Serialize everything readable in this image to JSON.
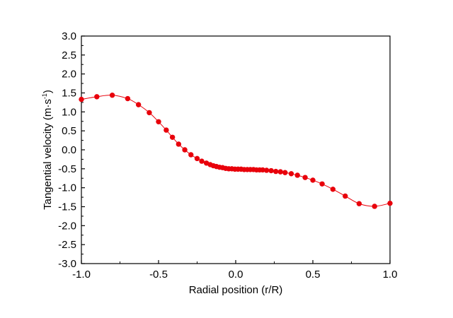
{
  "chart_data": {
    "type": "line",
    "title": "",
    "xlabel": "Radial position (r/R)",
    "ylabel_main": "Tangential velocity (m·s",
    "ylabel_sup": "-1",
    "ylabel_close": ")",
    "xlim": [
      -1.0,
      1.0
    ],
    "ylim": [
      -3.0,
      3.0
    ],
    "x_ticks": [
      -1.0,
      -0.5,
      0.0,
      0.5,
      1.0
    ],
    "x_tick_labels": [
      "-1.0",
      "-0.5",
      "0.0",
      "0.5",
      "1.0"
    ],
    "y_ticks": [
      3.0,
      2.5,
      2.0,
      1.5,
      1.0,
      0.5,
      0.0,
      -0.5,
      -1.0,
      -1.5,
      -2.0,
      -2.5,
      -3.0
    ],
    "y_tick_labels": [
      "3.0",
      "2.5",
      "2.0",
      "1.5",
      "1.0",
      "0.5",
      "0.0",
      "-0.5",
      "-1.0",
      "-1.5",
      "-2.0",
      "-2.5",
      "-3.0"
    ],
    "grid": false,
    "series_color": "#e8000b",
    "series": [
      {
        "name": "Tangential velocity",
        "x": [
          -1.0,
          -0.9,
          -0.8,
          -0.7,
          -0.63,
          -0.56,
          -0.5,
          -0.45,
          -0.41,
          -0.37,
          -0.33,
          -0.29,
          -0.25,
          -0.22,
          -0.19,
          -0.165,
          -0.145,
          -0.125,
          -0.105,
          -0.085,
          -0.065,
          -0.045,
          -0.025,
          -0.005,
          0.015,
          0.035,
          0.055,
          0.075,
          0.095,
          0.115,
          0.135,
          0.155,
          0.175,
          0.2,
          0.23,
          0.26,
          0.29,
          0.32,
          0.36,
          0.4,
          0.45,
          0.5,
          0.56,
          0.63,
          0.71,
          0.8,
          0.9,
          1.0
        ],
        "y": [
          1.33,
          1.4,
          1.44,
          1.35,
          1.19,
          0.98,
          0.74,
          0.52,
          0.33,
          0.15,
          0.0,
          -0.13,
          -0.23,
          -0.3,
          -0.35,
          -0.39,
          -0.42,
          -0.44,
          -0.46,
          -0.47,
          -0.49,
          -0.5,
          -0.5,
          -0.51,
          -0.51,
          -0.51,
          -0.52,
          -0.52,
          -0.52,
          -0.52,
          -0.53,
          -0.53,
          -0.53,
          -0.54,
          -0.55,
          -0.57,
          -0.58,
          -0.6,
          -0.63,
          -0.67,
          -0.73,
          -0.8,
          -0.9,
          -1.04,
          -1.22,
          -1.42,
          -1.49,
          -1.41
        ]
      }
    ]
  }
}
